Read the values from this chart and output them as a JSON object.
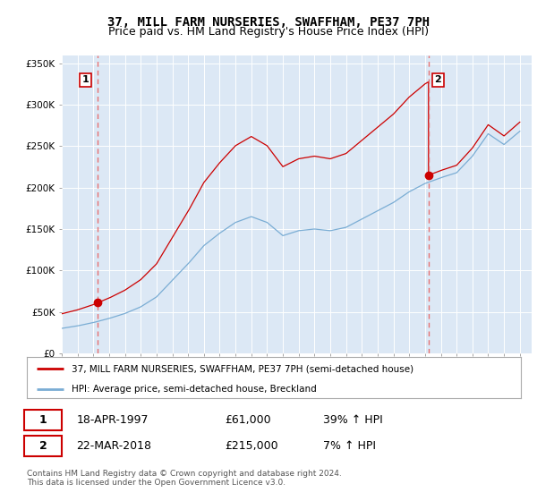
{
  "title": "37, MILL FARM NURSERIES, SWAFFHAM, PE37 7PH",
  "subtitle": "Price paid vs. HM Land Registry's House Price Index (HPI)",
  "legend_label_red": "37, MILL FARM NURSERIES, SWAFFHAM, PE37 7PH (semi-detached house)",
  "legend_label_blue": "HPI: Average price, semi-detached house, Breckland",
  "transaction1_label": "1",
  "transaction1_date": "18-APR-1997",
  "transaction1_price": "£61,000",
  "transaction1_hpi": "39% ↑ HPI",
  "transaction2_label": "2",
  "transaction2_date": "22-MAR-2018",
  "transaction2_price": "£215,000",
  "transaction2_hpi": "7% ↑ HPI",
  "footer": "Contains HM Land Registry data © Crown copyright and database right 2024.\nThis data is licensed under the Open Government Licence v3.0.",
  "ylim": [
    0,
    360000
  ],
  "yticks": [
    0,
    50000,
    100000,
    150000,
    200000,
    250000,
    300000,
    350000
  ],
  "ytick_labels": [
    "£0",
    "£50K",
    "£100K",
    "£150K",
    "£200K",
    "£250K",
    "£300K",
    "£350K"
  ],
  "plot_bg_color": "#dce8f5",
  "red_color": "#cc0000",
  "blue_color": "#7aadd4",
  "transaction1_x": 1997.29,
  "transaction1_y": 61000,
  "transaction2_x": 2018.22,
  "transaction2_y": 215000,
  "xmin": 1995.0,
  "xmax": 2024.75,
  "title_fontsize": 10,
  "subtitle_fontsize": 9
}
